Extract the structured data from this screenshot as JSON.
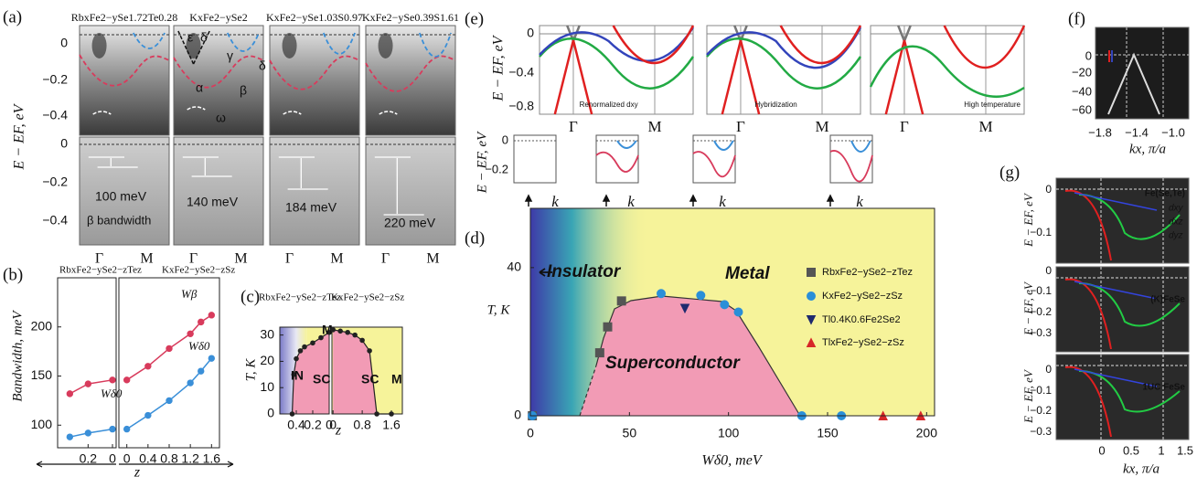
{
  "panel_labels": {
    "a": "(a)",
    "b": "(b)",
    "c": "(c)",
    "d": "(d)",
    "e": "(e)",
    "f": "(f)",
    "g": "(g)"
  },
  "panel_a": {
    "y_label": "E − EF, eV",
    "columns": [
      "RbxFe2−ySe1.72Te0.28",
      "KxFe2−ySe2",
      "KxFe2−ySe1.03S0.97",
      "KxFe2−ySe0.39S1.61"
    ],
    "yticks_top": [
      "0",
      "−0.2",
      "−0.4"
    ],
    "yticks_bottom": [
      "0",
      "−0.2",
      "−0.4"
    ],
    "xticks": [
      "Γ",
      "M",
      "Γ",
      "M",
      "Γ",
      "M",
      "Γ",
      "M"
    ],
    "bandwidths": [
      "100 meV",
      "140 meV",
      "184 meV",
      "220 meV"
    ],
    "bandwidth_label": "β bandwidth",
    "band_labels": [
      "ε",
      "δ",
      "γ",
      "δ",
      "α",
      "β",
      "ω"
    ]
  },
  "panel_e": {
    "y_label": "E − EF, eV",
    "yticks": [
      "0",
      "−0.4",
      "−0.8"
    ],
    "xticks": [
      "Γ",
      "M",
      "Γ",
      "M",
      "Γ",
      "M"
    ],
    "captions": [
      "Renormalized dxy",
      "Hybridization",
      "High temperature"
    ]
  },
  "insets": {
    "y_label": "E − EF, eV",
    "yticks": [
      "0",
      "−0.2"
    ],
    "k_labels": [
      "k",
      "k",
      "k",
      "k"
    ]
  },
  "panel_f": {
    "yticks": [
      "0",
      "−20",
      "−40",
      "−60"
    ],
    "xticks": [
      "−1.8",
      "−1.4",
      "−1.0"
    ],
    "x_label": "kx, π/a"
  },
  "panel_g": {
    "y_labels": [
      "E − EF, eV",
      "E − EF, eV",
      "E − EF, eV"
    ],
    "yticks": [
      [
        "0",
        "−0.1"
      ],
      [
        "0",
        "−0.1",
        "−0.2",
        "−0.3"
      ],
      [
        "0",
        "−0.1",
        "−0.2",
        "−0.3"
      ]
    ],
    "xticks": [
      "0",
      "0.5",
      "1",
      "1.5"
    ],
    "x_label": "kx, π/a",
    "captions": [
      "Fe(Se,Te)",
      "(K)FeSe",
      "1UC FeSe"
    ],
    "orbitals": [
      "dxy",
      "dxz",
      "dyz"
    ]
  },
  "chart_data": [
    {
      "type": "line",
      "title": "RbxFe2−ySe2−zTez",
      "y_label": "Bandwidth, meV",
      "x": [
        0.35,
        0.2,
        0
      ],
      "xlim": [
        0.45,
        -0.03
      ],
      "xticks": [
        0.2,
        0
      ],
      "ylim": [
        77,
        250
      ],
      "yticks": [
        100,
        150,
        200
      ],
      "series": [
        {
          "color": "#d83b5c",
          "values": [
            132,
            142,
            146
          ]
        },
        {
          "name": "Wδ0",
          "color": "#3a8fd8",
          "values": [
            88,
            92,
            96
          ]
        }
      ]
    },
    {
      "type": "line",
      "title": "KxFe2−ySe2−zSz",
      "x_label": "z",
      "x": [
        0,
        0.4,
        0.8,
        1.2,
        1.4,
        1.6
      ],
      "xlim": [
        -0.15,
        1.75
      ],
      "xticks": [
        0,
        0.4,
        0.8,
        1.2,
        1.6
      ],
      "ylim": [
        77,
        250
      ],
      "series": [
        {
          "name": "Wβ",
          "color": "#d83b5c",
          "values": [
            146,
            160,
            178,
            193,
            205,
            212
          ]
        },
        {
          "name": "Wδ0",
          "color": "#3a8fd8",
          "values": [
            96,
            110,
            125,
            143,
            155,
            168
          ]
        }
      ]
    },
    {
      "type": "area",
      "title": "RbxFe2−ySe2−zTez",
      "y_label": "T, K",
      "x": [
        0.45,
        0.43,
        0.4,
        0.35,
        0.3,
        0.2,
        0.1,
        0
      ],
      "xlim": [
        0.6,
        0
      ],
      "xticks": [
        0.4,
        0.2,
        0
      ],
      "ylim": [
        0,
        33
      ],
      "yticks": [
        0,
        10,
        20,
        30
      ],
      "annotations": [
        "IN",
        "SC",
        "M"
      ],
      "series": [
        {
          "color": "#222222",
          "area_color": "#f29bb5",
          "values": [
            0,
            15,
            21,
            24,
            25.5,
            27,
            29,
            31
          ]
        }
      ]
    },
    {
      "type": "area",
      "title": "KxFe2−ySe2−zSz",
      "x_label": "z",
      "x": [
        0,
        0.2,
        0.4,
        0.6,
        0.8,
        1.0,
        1.2,
        1.6
      ],
      "xlim": [
        -0.03,
        1.9
      ],
      "xticks": [
        0,
        0.8,
        1.6
      ],
      "ylim": [
        0,
        33
      ],
      "annotations": [
        "SC",
        "M"
      ],
      "series": [
        {
          "color": "#222222",
          "area_color": "#f29bb5",
          "values": [
            32,
            31.5,
            31,
            30,
            28,
            24,
            0,
            0
          ]
        }
      ]
    },
    {
      "type": "scatter",
      "x_label": "Wδ0, meV",
      "y_label": "T, K",
      "xlim": [
        0,
        204
      ],
      "xticks": [
        0,
        50,
        100,
        150,
        200
      ],
      "ylim": [
        0,
        56
      ],
      "yticks": [
        0,
        40
      ],
      "annotations": [
        "Insulator",
        "Metal",
        "Superconductor"
      ],
      "series": [
        {
          "name": "RbxFe2−ySe2−zTez",
          "color": "#555555",
          "marker": "square",
          "x": [
            1,
            35,
            39,
            46
          ],
          "values": [
            0,
            17,
            24,
            31
          ]
        },
        {
          "name": "KxFe2−ySe2−zSz",
          "color": "#2a8fd8",
          "marker": "circle",
          "x": [
            1,
            66,
            86,
            98,
            105,
            137,
            157
          ],
          "values": [
            0,
            33,
            32.5,
            30,
            28,
            0,
            0
          ]
        },
        {
          "name": "Tl0.4K0.6Fe2Se2",
          "color": "#1e2a6e",
          "marker": "triangle-down",
          "x": [
            78
          ],
          "values": [
            29
          ]
        },
        {
          "name": "TlxFe2−ySe2−zSz",
          "color": "#d62728",
          "marker": "triangle-up",
          "x": [
            178,
            197
          ],
          "values": [
            0,
            0
          ]
        }
      ]
    }
  ]
}
